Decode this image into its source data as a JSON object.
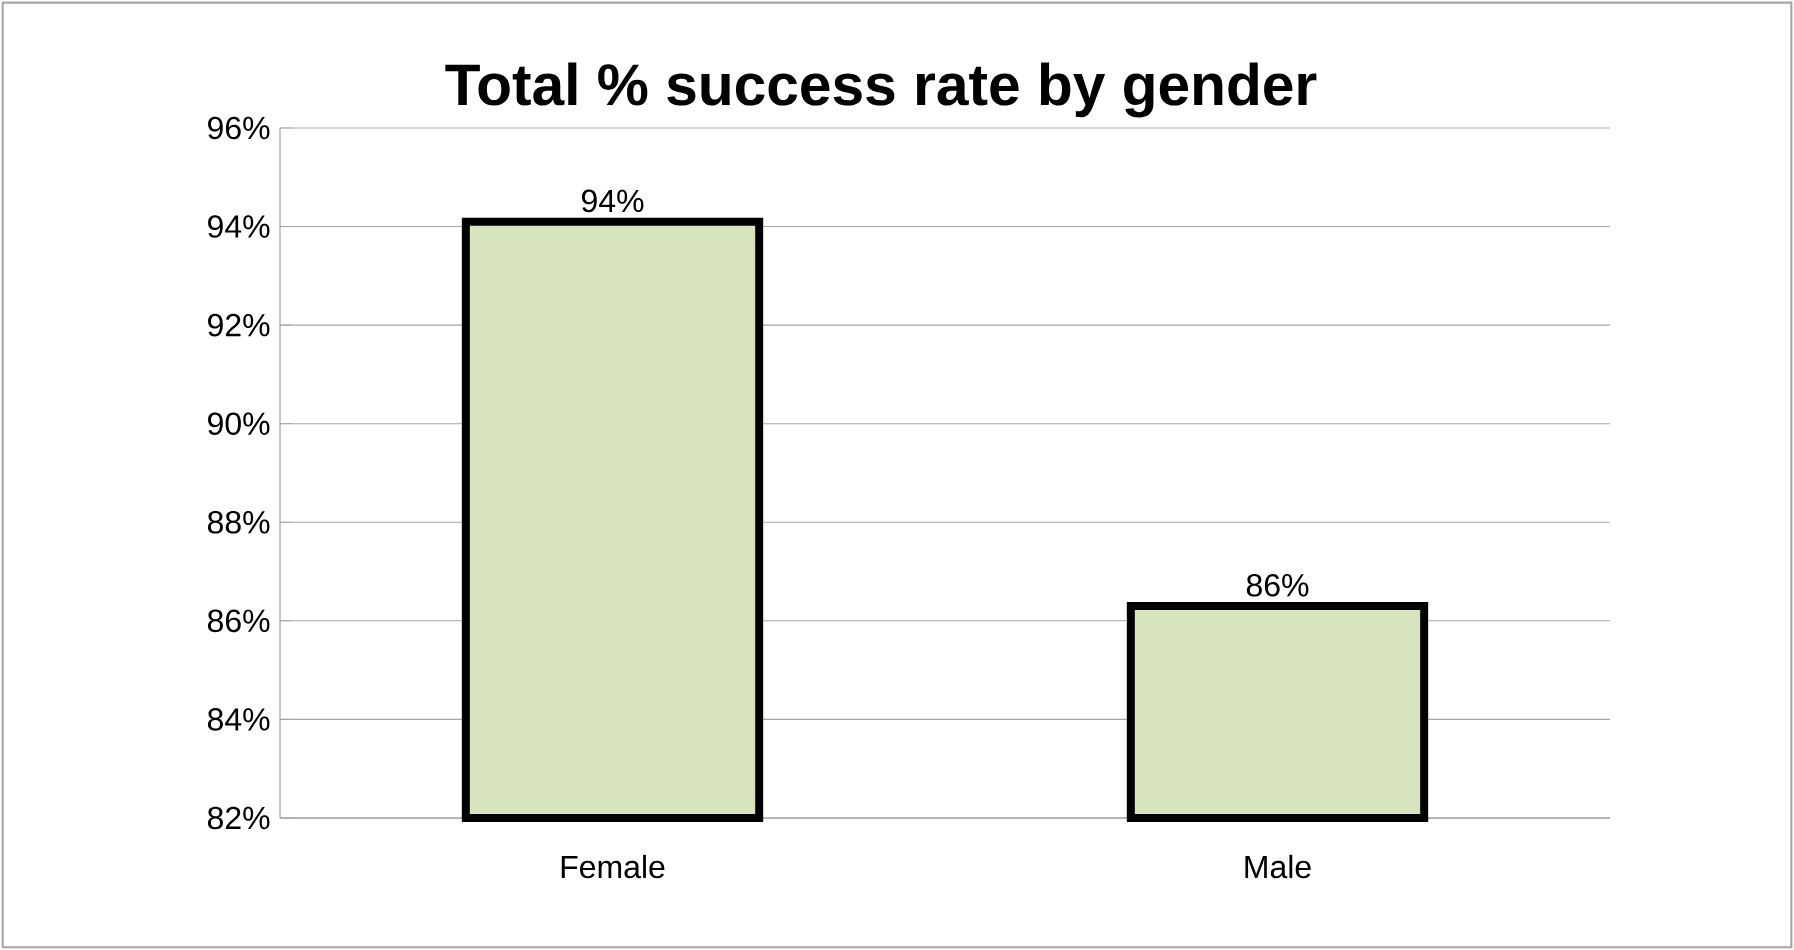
{
  "chart_data": {
    "type": "bar",
    "title": "Total % success rate by gender",
    "categories": [
      "Female",
      "Male"
    ],
    "values": [
      94.1,
      86.3
    ],
    "value_labels": [
      "94%",
      "86%"
    ],
    "color": "#d7e4bd",
    "ylim": [
      82,
      96
    ],
    "yticks": [
      {
        "value": 82,
        "label": "82%"
      },
      {
        "value": 84,
        "label": "84%"
      },
      {
        "value": 86,
        "label": "86%"
      },
      {
        "value": 88,
        "label": "88%"
      },
      {
        "value": 90,
        "label": "90%"
      },
      {
        "value": 92,
        "label": "92%"
      },
      {
        "value": 94,
        "label": "94%"
      },
      {
        "value": 96,
        "label": "96%"
      }
    ],
    "grid": "y"
  }
}
